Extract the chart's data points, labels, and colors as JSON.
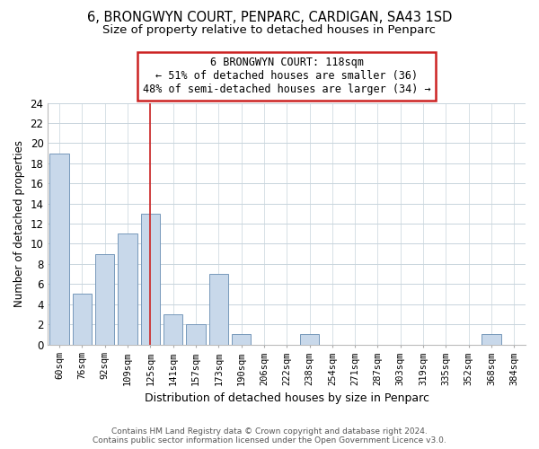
{
  "title": "6, BRONGWYN COURT, PENPARC, CARDIGAN, SA43 1SD",
  "subtitle": "Size of property relative to detached houses in Penparc",
  "xlabel": "Distribution of detached houses by size in Penparc",
  "ylabel": "Number of detached properties",
  "bin_labels": [
    "60sqm",
    "76sqm",
    "92sqm",
    "109sqm",
    "125sqm",
    "141sqm",
    "157sqm",
    "173sqm",
    "190sqm",
    "206sqm",
    "222sqm",
    "238sqm",
    "254sqm",
    "271sqm",
    "287sqm",
    "303sqm",
    "319sqm",
    "335sqm",
    "352sqm",
    "368sqm",
    "384sqm"
  ],
  "bar_values": [
    19,
    5,
    9,
    11,
    13,
    3,
    2,
    7,
    1,
    0,
    0,
    1,
    0,
    0,
    0,
    0,
    0,
    0,
    0,
    1,
    0
  ],
  "bar_color": "#c8d8ea",
  "bar_edge_color": "#7799bb",
  "ylim": [
    0,
    24
  ],
  "yticks": [
    0,
    2,
    4,
    6,
    8,
    10,
    12,
    14,
    16,
    18,
    20,
    22,
    24
  ],
  "property_bin_index": 4,
  "annotation_line1": "6 BRONGWYN COURT: 118sqm",
  "annotation_line2": "← 51% of detached houses are smaller (36)",
  "annotation_line3": "48% of semi-detached houses are larger (34) →",
  "vline_color": "#cc2222",
  "footer_line1": "Contains HM Land Registry data © Crown copyright and database right 2024.",
  "footer_line2": "Contains public sector information licensed under the Open Government Licence v3.0.",
  "background_color": "#ffffff",
  "grid_color": "#c8d4dc",
  "title_fontsize": 10.5,
  "subtitle_fontsize": 9.5,
  "annotation_box_color": "#cc2222"
}
